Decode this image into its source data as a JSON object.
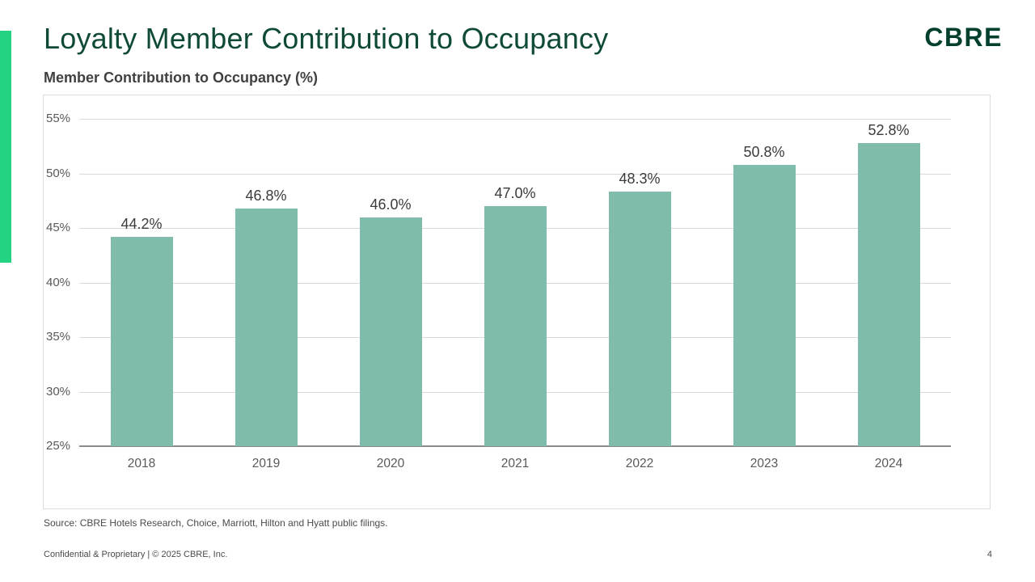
{
  "slide": {
    "title": "Loyalty Member Contribution to Occupancy",
    "subtitle": "Member Contribution to Occupancy (%)",
    "logo": "CBRE",
    "source": "Source: CBRE Hotels Research, Choice, Marriott, Hilton and Hyatt public filings.",
    "footer_left": "Confidential & Proprietary | © 2025 CBRE, Inc.",
    "page_number": "4"
  },
  "colors": {
    "title_green": "#0F4A38",
    "logo_green": "#003F2D",
    "accent_green": "#23D381",
    "bar_teal": "#7FBCAC",
    "gridline": "#D9D9D9",
    "axis_line": "#8C8C8C",
    "tick_label": "#595959",
    "data_label": "#3B3B3B"
  },
  "chart_data": {
    "type": "bar",
    "title": "Member Contribution to Occupancy (%)",
    "categories": [
      "2018",
      "2019",
      "2020",
      "2021",
      "2022",
      "2023",
      "2024"
    ],
    "values": [
      44.2,
      46.8,
      46.0,
      47.0,
      48.3,
      50.8,
      52.8
    ],
    "value_labels": [
      "44.2%",
      "46.8%",
      "46.0%",
      "47.0%",
      "48.3%",
      "50.8%",
      "52.8%"
    ],
    "xlabel": "",
    "ylabel": "",
    "ylim": [
      25,
      55
    ],
    "ytick_step": 5,
    "ytick_labels": [
      "25%",
      "30%",
      "35%",
      "40%",
      "45%",
      "50%",
      "55%"
    ],
    "grid": true,
    "legend": false
  }
}
